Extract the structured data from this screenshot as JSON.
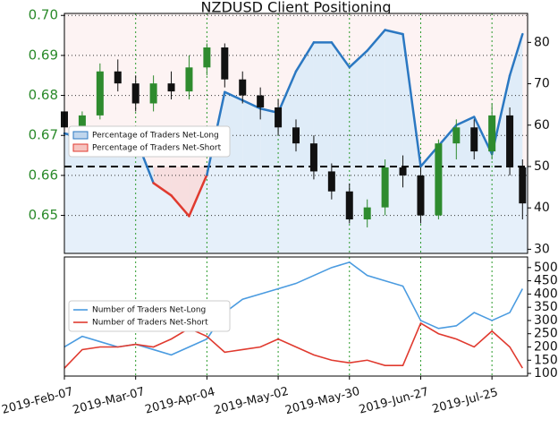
{
  "chart_data": [
    {
      "type": "candlestick",
      "title": "NZDUSD Client Positioning",
      "x": [
        "2019-02-07",
        "2019-02-14",
        "2019-02-21",
        "2019-02-28",
        "2019-03-07",
        "2019-03-14",
        "2019-03-21",
        "2019-03-28",
        "2019-04-04",
        "2019-04-11",
        "2019-04-18",
        "2019-04-25",
        "2019-05-02",
        "2019-05-09",
        "2019-05-16",
        "2019-05-23",
        "2019-05-30",
        "2019-06-06",
        "2019-06-13",
        "2019-06-20",
        "2019-06-27",
        "2019-07-04",
        "2019-07-11",
        "2019-07-18",
        "2019-07-25",
        "2019-08-01",
        "2019-08-06"
      ],
      "open": [
        0.676,
        0.672,
        0.675,
        0.686,
        0.683,
        0.678,
        0.683,
        0.681,
        0.687,
        0.692,
        0.684,
        0.68,
        0.677,
        0.672,
        0.668,
        0.661,
        0.656,
        0.649,
        0.652,
        0.662,
        0.66,
        0.65,
        0.668,
        0.672,
        0.666,
        0.675,
        0.662
      ],
      "high": [
        0.677,
        0.676,
        0.688,
        0.689,
        0.685,
        0.685,
        0.686,
        0.69,
        0.693,
        0.693,
        0.686,
        0.682,
        0.679,
        0.674,
        0.67,
        0.663,
        0.658,
        0.654,
        0.664,
        0.665,
        0.662,
        0.669,
        0.674,
        0.674,
        0.678,
        0.677,
        0.664
      ],
      "low": [
        0.666,
        0.668,
        0.674,
        0.681,
        0.676,
        0.676,
        0.679,
        0.679,
        0.685,
        0.682,
        0.678,
        0.674,
        0.67,
        0.666,
        0.659,
        0.654,
        0.648,
        0.647,
        0.65,
        0.657,
        0.648,
        0.649,
        0.664,
        0.664,
        0.664,
        0.66,
        0.649
      ],
      "close": [
        0.672,
        0.675,
        0.686,
        0.683,
        0.678,
        0.683,
        0.681,
        0.687,
        0.692,
        0.684,
        0.68,
        0.677,
        0.672,
        0.668,
        0.661,
        0.656,
        0.649,
        0.652,
        0.662,
        0.66,
        0.65,
        0.668,
        0.672,
        0.666,
        0.675,
        0.662,
        0.653
      ],
      "up_color": "#2e8b2e",
      "down_color": "#111111",
      "xlim": [
        "2019-02-07",
        "2019-08-08"
      ],
      "ylim": [
        0.6405,
        0.7005
      ],
      "yticks": [
        0.65,
        0.66,
        0.67,
        0.68,
        0.69,
        {
          "value": 0.7,
          "label": "0.70"
        }
      ],
      "y2lim": [
        29,
        87
      ],
      "y2ticks": [
        30,
        40,
        50,
        60,
        70,
        80
      ],
      "reference_line": 50,
      "series": [
        {
          "name": "Percentage of Traders Net-Long",
          "color": "#2b78c2",
          "axis": "y2",
          "values": [
            58,
            57,
            57,
            56,
            57,
            46,
            43,
            38,
            48,
            68,
            66,
            64,
            63,
            73,
            80,
            80,
            74,
            78,
            83,
            82,
            50,
            55,
            60,
            62,
            53,
            72,
            82
          ]
        },
        {
          "name": "Percentage of Traders Net-Short",
          "color": "#e03a2f"
        }
      ],
      "grid": true
    },
    {
      "type": "line",
      "x": [
        "2019-02-07",
        "2019-02-14",
        "2019-02-21",
        "2019-02-28",
        "2019-03-07",
        "2019-03-14",
        "2019-03-21",
        "2019-03-28",
        "2019-04-04",
        "2019-04-11",
        "2019-04-18",
        "2019-04-25",
        "2019-05-02",
        "2019-05-09",
        "2019-05-16",
        "2019-05-23",
        "2019-05-30",
        "2019-06-06",
        "2019-06-13",
        "2019-06-20",
        "2019-06-27",
        "2019-07-04",
        "2019-07-11",
        "2019-07-18",
        "2019-07-25",
        "2019-08-01",
        "2019-08-06"
      ],
      "xlim": [
        "2019-02-07",
        "2019-08-08"
      ],
      "xticks": [
        {
          "value": "2019-02-07",
          "label": "2019-Feb-07"
        },
        {
          "value": "2019-03-07",
          "label": "2019-Mar-07"
        },
        {
          "value": "2019-04-04",
          "label": "2019-Apr-04"
        },
        {
          "value": "2019-05-02",
          "label": "2019-May-02"
        },
        {
          "value": "2019-05-30",
          "label": "2019-May-30"
        },
        {
          "value": "2019-06-27",
          "label": "2019-Jun-27"
        },
        {
          "value": "2019-07-25",
          "label": "2019-Jul-25"
        }
      ],
      "ylim": [
        90,
        540
      ],
      "yticks": [
        100,
        150,
        200,
        250,
        300,
        350,
        400,
        450,
        500
      ],
      "series": [
        {
          "name": "Number of Traders Net-Long",
          "color": "#4a9be0",
          "values": [
            200,
            240,
            220,
            200,
            210,
            190,
            170,
            200,
            230,
            330,
            380,
            400,
            420,
            440,
            470,
            500,
            520,
            470,
            450,
            430,
            300,
            270,
            280,
            330,
            300,
            330,
            420
          ]
        },
        {
          "name": "Number of Traders Net-Short",
          "color": "#e03a2f",
          "values": [
            120,
            190,
            200,
            200,
            210,
            200,
            230,
            270,
            240,
            180,
            190,
            200,
            230,
            200,
            170,
            150,
            140,
            150,
            130,
            130,
            290,
            250,
            230,
            200,
            260,
            200,
            120
          ]
        }
      ]
    }
  ]
}
